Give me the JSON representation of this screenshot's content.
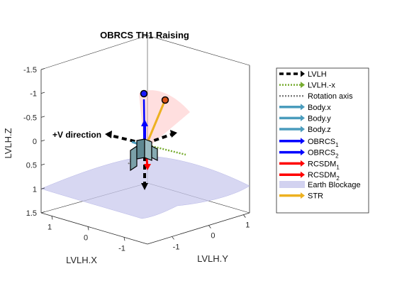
{
  "chart_data": {
    "type": "3d-scene",
    "title": "OBRCS TH1 Raising",
    "xlabel": "LVLH.X",
    "ylabel": "LVLH.Y",
    "zlabel": "LVLH.Z",
    "x_ticks": [
      "1",
      "0",
      "-1"
    ],
    "y_ticks": [
      "-1",
      "0",
      "1"
    ],
    "z_ticks": [
      "-1.5",
      "-1",
      "-0.5",
      "0",
      "0.5",
      "1",
      "1.5"
    ],
    "xlim": [
      -1.5,
      1.5
    ],
    "ylim": [
      -1.5,
      1.5
    ],
    "zlim": [
      -1.5,
      1.5
    ],
    "z_reversed": true,
    "annotation": "+V direction",
    "legend_position": "right",
    "legend": [
      {
        "key": "lvlh",
        "label": "LVLH",
        "sub": "",
        "color": "#000000",
        "style": "dash-arrow"
      },
      {
        "key": "lvlhx",
        "label": "LVLH.-x",
        "sub": "",
        "color": "#77ac30",
        "style": "dot-arrow"
      },
      {
        "key": "rot",
        "label": "Rotation axis",
        "sub": "",
        "color": "#808080",
        "style": "dot"
      },
      {
        "key": "bx",
        "label": "Body.x",
        "sub": "",
        "color": "#4a9cbd",
        "style": "arrow"
      },
      {
        "key": "by",
        "label": "Body.y",
        "sub": "",
        "color": "#4a9cbd",
        "style": "arrow"
      },
      {
        "key": "bz",
        "label": "Body.z",
        "sub": "",
        "color": "#4a9cbd",
        "style": "arrow"
      },
      {
        "key": "ob1",
        "label": "OBRCS",
        "sub": "1",
        "color": "#0000ff",
        "style": "arrow"
      },
      {
        "key": "ob2",
        "label": "OBRCS",
        "sub": "2",
        "color": "#0000ff",
        "style": "arrow"
      },
      {
        "key": "rc1",
        "label": "RCSDM",
        "sub": "1",
        "color": "#ff0000",
        "style": "arrow"
      },
      {
        "key": "rc2",
        "label": "RCSDM",
        "sub": "2",
        "color": "#ff0000",
        "style": "arrow"
      },
      {
        "key": "earth",
        "label": "Earth Blockage",
        "sub": "",
        "color": "#d2d2f0",
        "style": "patch"
      },
      {
        "key": "str",
        "label": "STR",
        "sub": "",
        "color": "#edb120",
        "style": "arrow"
      }
    ]
  }
}
